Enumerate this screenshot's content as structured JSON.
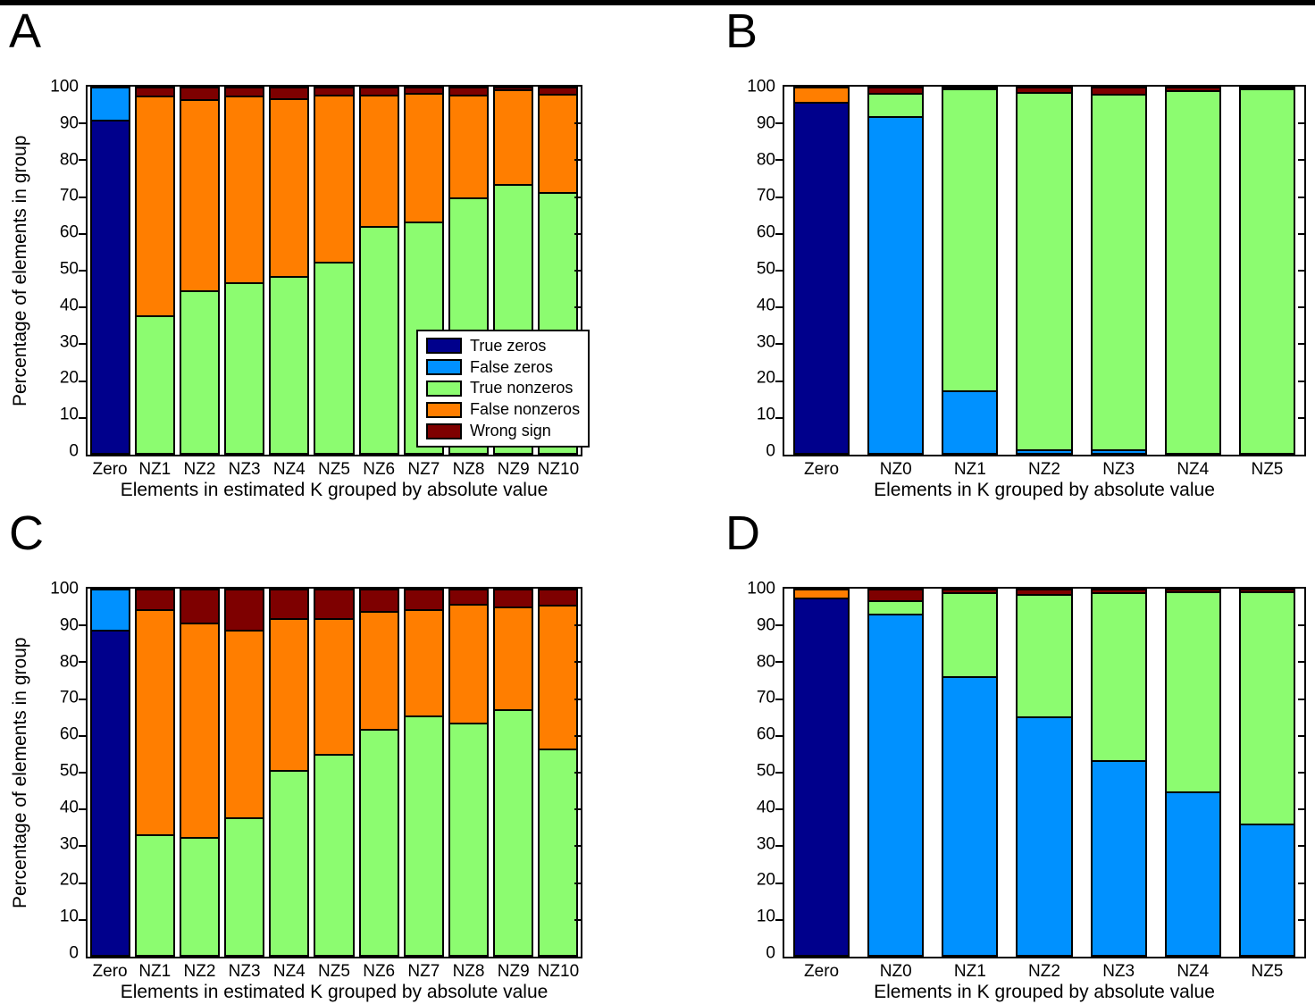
{
  "figure": {
    "background": "#FFFFFF",
    "top_border_color": "#000000"
  },
  "colors": {
    "true_zeros": "#00008C",
    "false_zeros": "#0091FF",
    "true_nonzeros": "#8CFC70",
    "false_nonzeros": "#FF7E00",
    "wrong_sign": "#7E0000",
    "axis": "#000000"
  },
  "legend": {
    "visible_in_panel": "A",
    "location": "inside lower right",
    "entries": [
      {
        "label": "True zeros",
        "color_key": "true_zeros"
      },
      {
        "label": "False zeros",
        "color_key": "false_zeros"
      },
      {
        "label": "True nonzeros",
        "color_key": "true_nonzeros"
      },
      {
        "label": "False nonzeros",
        "color_key": "false_nonzeros"
      },
      {
        "label": "Wrong sign",
        "color_key": "wrong_sign"
      }
    ]
  },
  "chart_data": [
    {
      "panel": "A",
      "type": "bar",
      "stacked": true,
      "categories": [
        "Zero",
        "NZ1",
        "NZ2",
        "NZ3",
        "NZ4",
        "NZ5",
        "NZ6",
        "NZ7",
        "NZ8",
        "NZ9",
        "NZ10"
      ],
      "series": [
        {
          "name": "True zeros",
          "key": "true_zeros",
          "values": [
            91.0,
            0,
            0,
            0,
            0,
            0,
            0,
            0,
            0,
            0,
            0
          ]
        },
        {
          "name": "False zeros",
          "key": "false_zeros",
          "values": [
            9.0,
            0,
            0,
            0,
            0,
            0,
            0,
            0,
            0,
            0,
            0
          ]
        },
        {
          "name": "True nonzeros",
          "key": "true_nonzeros",
          "values": [
            0,
            37.3,
            44.0,
            46.2,
            48.0,
            52.0,
            61.8,
            63.0,
            69.7,
            73.3,
            71.2
          ]
        },
        {
          "name": "False nonzeros",
          "key": "false_nonzeros",
          "values": [
            0,
            60.2,
            52.5,
            51.3,
            48.9,
            45.8,
            36.1,
            35.2,
            28.1,
            26.0,
            26.9
          ]
        },
        {
          "name": "Wrong sign",
          "key": "wrong_sign",
          "values": [
            0,
            2.5,
            3.5,
            2.5,
            3.1,
            2.2,
            2.1,
            1.8,
            2.2,
            0.7,
            1.9
          ]
        }
      ],
      "xlabel": "Elements in estimated K grouped by absolute value",
      "ylabel": "Percentage of elements in group",
      "ylim": [
        0,
        100
      ],
      "yticks": [
        0,
        10,
        20,
        30,
        40,
        50,
        60,
        70,
        80,
        90,
        100
      ],
      "grid": false,
      "legend_visible": true
    },
    {
      "panel": "B",
      "type": "bar",
      "stacked": true,
      "categories": [
        "Zero",
        "NZ0",
        "NZ1",
        "NZ2",
        "NZ3",
        "NZ4",
        "NZ5"
      ],
      "series": [
        {
          "name": "True zeros",
          "key": "true_zeros",
          "values": [
            95.8,
            0,
            0,
            0,
            0,
            0,
            0
          ]
        },
        {
          "name": "False zeros",
          "key": "false_zeros",
          "values": [
            0,
            92.0,
            16.8,
            0.5,
            0.5,
            0,
            0
          ]
        },
        {
          "name": "True nonzeros",
          "key": "true_nonzeros",
          "values": [
            0,
            6.4,
            83.0,
            98.0,
            97.5,
            99.0,
            99.4
          ]
        },
        {
          "name": "False nonzeros",
          "key": "false_nonzeros",
          "values": [
            4.2,
            0,
            0,
            0,
            0,
            0,
            0
          ]
        },
        {
          "name": "Wrong sign",
          "key": "wrong_sign",
          "values": [
            0,
            1.6,
            0.2,
            1.5,
            2.0,
            1.0,
            0.6
          ]
        }
      ],
      "xlabel": "Elements in K grouped by absolute value",
      "ylabel": "",
      "ylim": [
        0,
        100
      ],
      "yticks": [
        0,
        10,
        20,
        30,
        40,
        50,
        60,
        70,
        80,
        90,
        100
      ],
      "grid": false,
      "legend_visible": false
    },
    {
      "panel": "C",
      "type": "bar",
      "stacked": true,
      "categories": [
        "Zero",
        "NZ1",
        "NZ2",
        "NZ3",
        "NZ4",
        "NZ5",
        "NZ6",
        "NZ7",
        "NZ8",
        "NZ9",
        "NZ10"
      ],
      "series": [
        {
          "name": "True zeros",
          "key": "true_zeros",
          "values": [
            88.8,
            0,
            0,
            0,
            0,
            0,
            0,
            0,
            0,
            0,
            0
          ]
        },
        {
          "name": "False zeros",
          "key": "false_zeros",
          "values": [
            11.2,
            0,
            0,
            0,
            0,
            0,
            0,
            0,
            0,
            0,
            0
          ]
        },
        {
          "name": "True nonzeros",
          "key": "true_nonzeros",
          "values": [
            0,
            32.5,
            31.8,
            37.3,
            50.3,
            54.7,
            61.5,
            65.3,
            63.2,
            67.0,
            56.2
          ]
        },
        {
          "name": "False nonzeros",
          "key": "false_nonzeros",
          "values": [
            0,
            61.9,
            58.9,
            51.4,
            41.5,
            37.1,
            32.4,
            29.0,
            32.7,
            28.0,
            39.3
          ]
        },
        {
          "name": "Wrong sign",
          "key": "wrong_sign",
          "values": [
            0,
            5.6,
            9.3,
            11.3,
            8.2,
            8.2,
            6.1,
            5.7,
            4.1,
            5.0,
            4.5
          ]
        }
      ],
      "xlabel": "Elements in estimated K grouped by absolute value",
      "ylabel": "Percentage of elements in group",
      "ylim": [
        0,
        100
      ],
      "yticks": [
        0,
        10,
        20,
        30,
        40,
        50,
        60,
        70,
        80,
        90,
        100
      ],
      "grid": false,
      "legend_visible": false
    },
    {
      "panel": "D",
      "type": "bar",
      "stacked": true,
      "categories": [
        "Zero",
        "NZ0",
        "NZ1",
        "NZ2",
        "NZ3",
        "NZ4",
        "NZ5"
      ],
      "series": [
        {
          "name": "True zeros",
          "key": "true_zeros",
          "values": [
            97.6,
            0,
            0,
            0,
            0,
            0,
            0
          ]
        },
        {
          "name": "False zeros",
          "key": "false_zeros",
          "values": [
            0,
            93.1,
            76.0,
            65.0,
            53.0,
            44.4,
            35.5
          ]
        },
        {
          "name": "True nonzeros",
          "key": "true_nonzeros",
          "values": [
            0,
            3.7,
            23.0,
            33.5,
            46.0,
            54.9,
            63.8
          ]
        },
        {
          "name": "False nonzeros",
          "key": "false_nonzeros",
          "values": [
            2.4,
            0,
            0,
            0,
            0,
            0,
            0
          ]
        },
        {
          "name": "Wrong sign",
          "key": "wrong_sign",
          "values": [
            0,
            3.2,
            1.0,
            1.5,
            1.0,
            0.7,
            0.7
          ]
        }
      ],
      "xlabel": "Elements in K grouped by absolute value",
      "ylabel": "",
      "ylim": [
        0,
        100
      ],
      "yticks": [
        0,
        10,
        20,
        30,
        40,
        50,
        60,
        70,
        80,
        90,
        100
      ],
      "grid": false,
      "legend_visible": false
    }
  ]
}
